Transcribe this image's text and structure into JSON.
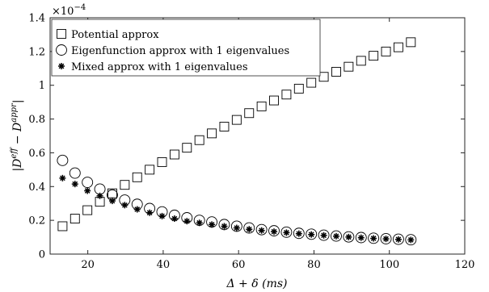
{
  "chart_data": {
    "type": "scatter",
    "xlabel": "Δ + δ (ms)",
    "ylabel_parts": [
      "|D",
      "eff",
      " − D",
      "appr",
      "|"
    ],
    "xlim": [
      10,
      120
    ],
    "ylim": [
      0,
      1.4
    ],
    "y_scale_label": "×10",
    "y_scale_exponent": "−4",
    "xticks": [
      20,
      40,
      60,
      80,
      100,
      120
    ],
    "xtick_labels": [
      "20",
      "40",
      "60",
      "80",
      "100",
      "120"
    ],
    "yticks": [
      0,
      0.2,
      0.4,
      0.6,
      0.8,
      1,
      1.2,
      1.4
    ],
    "ytick_labels": [
      "0",
      "0.2",
      "0.4",
      "0.6",
      "0.8",
      "1",
      "1.2",
      "1.4"
    ],
    "legend_position": "top-left",
    "x": [
      13.3,
      16.6,
      19.9,
      23.2,
      26.5,
      29.8,
      33.1,
      36.4,
      39.7,
      43.0,
      46.3,
      49.6,
      52.9,
      56.2,
      59.5,
      62.8,
      66.1,
      69.4,
      72.7,
      76.0,
      79.3,
      82.6,
      85.9,
      89.2,
      92.5,
      95.8,
      99.1,
      102.4,
      105.7
    ],
    "series": [
      {
        "name": "Potential approx",
        "marker": "square",
        "values": [
          0.165,
          0.21,
          0.26,
          0.31,
          0.36,
          0.41,
          0.455,
          0.5,
          0.545,
          0.59,
          0.63,
          0.675,
          0.715,
          0.755,
          0.795,
          0.835,
          0.875,
          0.91,
          0.945,
          0.98,
          1.015,
          1.05,
          1.08,
          1.11,
          1.145,
          1.175,
          1.2,
          1.225,
          1.255
        ]
      },
      {
        "name": "Eigenfunction approx with 1 eigenvalues",
        "marker": "circle",
        "values": [
          0.555,
          0.48,
          0.425,
          0.385,
          0.35,
          0.32,
          0.295,
          0.27,
          0.25,
          0.23,
          0.215,
          0.2,
          0.19,
          0.175,
          0.165,
          0.155,
          0.145,
          0.138,
          0.13,
          0.123,
          0.118,
          0.112,
          0.107,
          0.102,
          0.098,
          0.094,
          0.091,
          0.088,
          0.085
        ]
      },
      {
        "name": "Mixed approx with 1 eigenvalues",
        "marker": "asterisk",
        "values": [
          0.45,
          0.415,
          0.375,
          0.345,
          0.315,
          0.29,
          0.265,
          0.245,
          0.225,
          0.21,
          0.195,
          0.185,
          0.175,
          0.165,
          0.155,
          0.147,
          0.14,
          0.133,
          0.127,
          0.121,
          0.116,
          0.111,
          0.106,
          0.101,
          0.097,
          0.093,
          0.09,
          0.087,
          0.084
        ]
      }
    ]
  }
}
